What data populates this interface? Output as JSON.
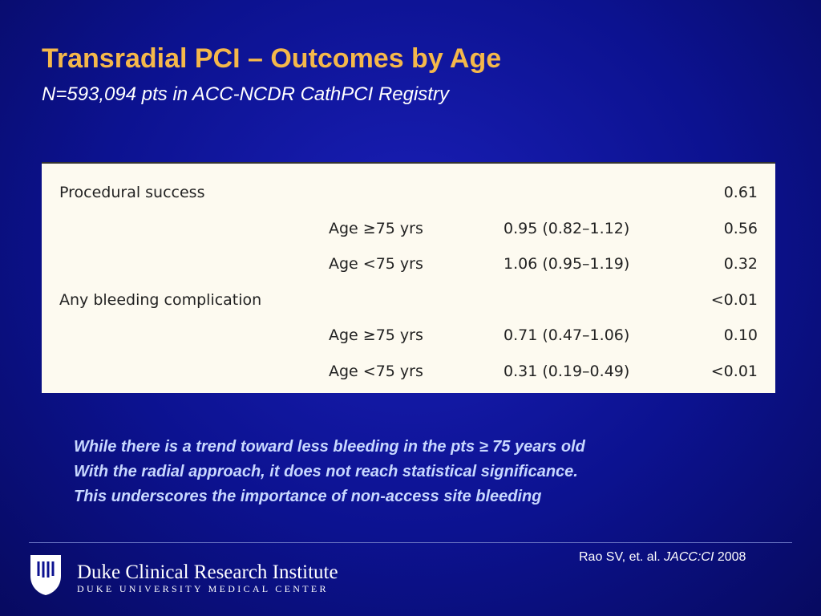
{
  "header": {
    "title": "Transradial PCI – Outcomes by Age",
    "subtitle": "N=593,094 pts in ACC-NCDR CathPCI Registry"
  },
  "table": {
    "rows": [
      [
        "Procedural success",
        "",
        "",
        "0.61"
      ],
      [
        "",
        "Age ≥75 yrs",
        "0.95 (0.82–1.12)",
        "0.56"
      ],
      [
        "",
        "Age <75 yrs",
        "1.06 (0.95–1.19)",
        "0.32"
      ],
      [
        "Any bleeding complication",
        "",
        "",
        "<0.01"
      ],
      [
        "",
        "Age ≥75 yrs",
        "0.71 (0.47–1.06)",
        "0.10"
      ],
      [
        "",
        "Age <75 yrs",
        "0.31 (0.19–0.49)",
        "<0.01"
      ]
    ]
  },
  "note": [
    "While there is a trend toward less bleeding in the pts ≥ 75 years old",
    "With the radial approach, it does not reach statistical significance.",
    "This underscores the importance of non-access site bleeding"
  ],
  "citation": {
    "authors": "Rao SV, et. al.",
    "journal": "JACC:CI",
    "year": "2008"
  },
  "footer": {
    "institute": "Duke Clinical Research Institute",
    "center": "DUKE UNIVERSITY MEDICAL CENTER"
  }
}
